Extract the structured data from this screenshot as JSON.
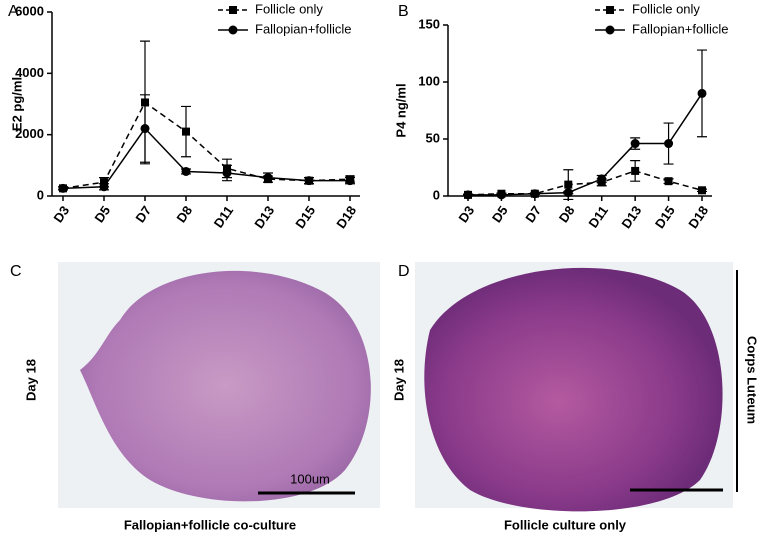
{
  "chart_data": [
    {
      "type": "line",
      "label": "A",
      "ylabel": "E2 pg/ml",
      "categories": [
        "D3",
        "D5",
        "D7",
        "D8",
        "D11",
        "D13",
        "D15",
        "D18"
      ],
      "ylim": [
        0,
        6000
      ],
      "yticks": [
        0,
        2000,
        4000,
        6000
      ],
      "series": [
        {
          "name": "Follicle only",
          "color": "#000000",
          "dash": true,
          "marker": "square",
          "values": [
            250,
            450,
            3050,
            2100,
            900,
            550,
            500,
            550
          ],
          "errors": [
            50,
            150,
            2000,
            820,
            300,
            100,
            100,
            100
          ]
        },
        {
          "name": "Fallopian+follicle",
          "color": "#000000",
          "dash": false,
          "marker": "circle",
          "values": [
            250,
            300,
            2200,
            800,
            750,
            600,
            500,
            500
          ],
          "errors": [
            50,
            100,
            1100,
            80,
            250,
            150,
            100,
            100
          ]
        }
      ]
    },
    {
      "type": "line",
      "label": "B",
      "ylabel": "P4 ng/ml",
      "categories": [
        "D3",
        "D5",
        "D7",
        "D8",
        "D11",
        "D13",
        "D15",
        "D18"
      ],
      "ylim": [
        0,
        150
      ],
      "yticks": [
        0,
        50,
        100,
        150
      ],
      "series": [
        {
          "name": "Follicle only",
          "color": "#000000",
          "dash": true,
          "marker": "square",
          "values": [
            1,
            2,
            2,
            10,
            12,
            22,
            13,
            5
          ],
          "errors": [
            0.5,
            0.5,
            0.5,
            13,
            3,
            9,
            2,
            1
          ]
        },
        {
          "name": "Fallopian+follicle",
          "color": "#000000",
          "dash": false,
          "marker": "circle",
          "values": [
            1,
            1,
            2,
            3,
            15,
            46,
            46,
            90
          ],
          "errors": [
            0.5,
            0.5,
            0.5,
            1,
            3,
            5,
            18,
            38
          ]
        }
      ]
    }
  ],
  "panels": {
    "C": {
      "label": "C",
      "side_label": "Day 18",
      "scale_bar": "100um",
      "caption": "Fallopian+follicle co-culture"
    },
    "D": {
      "label": "D",
      "side_label": "Day 18",
      "annotation": "Corps Luteum",
      "caption": "Follicle culture only"
    }
  }
}
